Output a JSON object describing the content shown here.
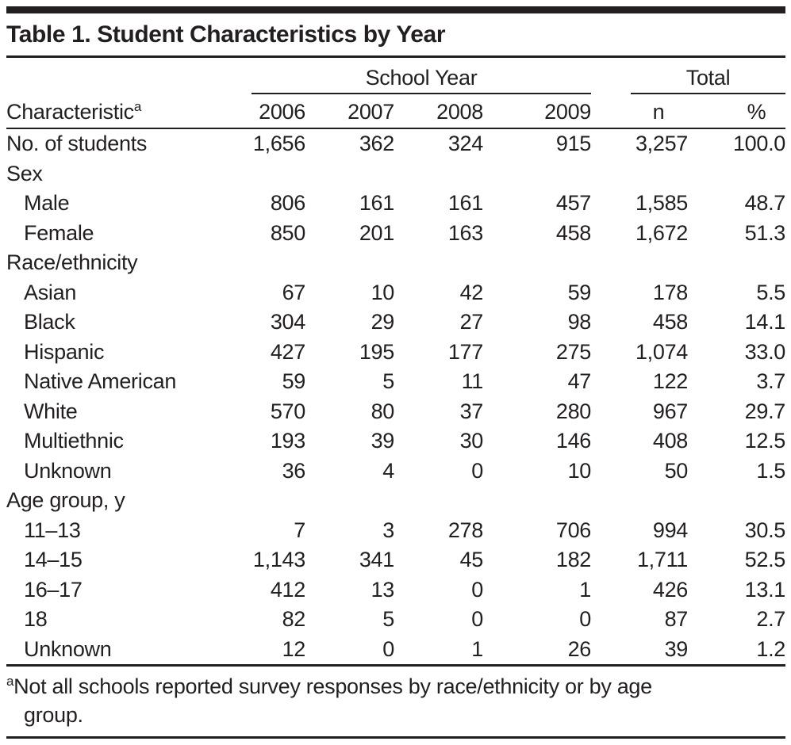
{
  "title": "Table 1. Student Characteristics by Year",
  "table": {
    "group_headers": {
      "school_year": "School Year",
      "total": "Total"
    },
    "characteristic_header": "Characteristic",
    "characteristic_footnote_marker": "a",
    "year_headers": [
      "2006",
      "2007",
      "2008",
      "2009"
    ],
    "total_headers": {
      "n": "n",
      "pct": "%"
    },
    "rows": [
      {
        "label": "No. of students",
        "section": false,
        "indent": false,
        "values": [
          "1,656",
          "362",
          "324",
          "915",
          "3,257",
          "100.0"
        ]
      },
      {
        "label": "Sex",
        "section": true,
        "indent": false,
        "values": []
      },
      {
        "label": "Male",
        "section": false,
        "indent": true,
        "values": [
          "806",
          "161",
          "161",
          "457",
          "1,585",
          "48.7"
        ]
      },
      {
        "label": "Female",
        "section": false,
        "indent": true,
        "values": [
          "850",
          "201",
          "163",
          "458",
          "1,672",
          "51.3"
        ]
      },
      {
        "label": "Race/ethnicity",
        "section": true,
        "indent": false,
        "values": []
      },
      {
        "label": "Asian",
        "section": false,
        "indent": true,
        "values": [
          "67",
          "10",
          "42",
          "59",
          "178",
          "5.5"
        ]
      },
      {
        "label": "Black",
        "section": false,
        "indent": true,
        "values": [
          "304",
          "29",
          "27",
          "98",
          "458",
          "14.1"
        ]
      },
      {
        "label": "Hispanic",
        "section": false,
        "indent": true,
        "values": [
          "427",
          "195",
          "177",
          "275",
          "1,074",
          "33.0"
        ]
      },
      {
        "label": "Native American",
        "section": false,
        "indent": true,
        "values": [
          "59",
          "5",
          "11",
          "47",
          "122",
          "3.7"
        ]
      },
      {
        "label": "White",
        "section": false,
        "indent": true,
        "values": [
          "570",
          "80",
          "37",
          "280",
          "967",
          "29.7"
        ]
      },
      {
        "label": "Multiethnic",
        "section": false,
        "indent": true,
        "values": [
          "193",
          "39",
          "30",
          "146",
          "408",
          "12.5"
        ]
      },
      {
        "label": "Unknown",
        "section": false,
        "indent": true,
        "values": [
          "36",
          "4",
          "0",
          "10",
          "50",
          "1.5"
        ]
      },
      {
        "label": "Age group, y",
        "section": true,
        "indent": false,
        "values": []
      },
      {
        "label": "11–13",
        "section": false,
        "indent": true,
        "values": [
          "7",
          "3",
          "278",
          "706",
          "994",
          "30.5"
        ]
      },
      {
        "label": "14–15",
        "section": false,
        "indent": true,
        "values": [
          "1,143",
          "341",
          "45",
          "182",
          "1,711",
          "52.5"
        ]
      },
      {
        "label": "16–17",
        "section": false,
        "indent": true,
        "values": [
          "412",
          "13",
          "0",
          "1",
          "426",
          "13.1"
        ]
      },
      {
        "label": "18",
        "section": false,
        "indent": true,
        "values": [
          "82",
          "5",
          "0",
          "0",
          "87",
          "2.7"
        ]
      },
      {
        "label": "Unknown",
        "section": false,
        "indent": true,
        "values": [
          "12",
          "0",
          "1",
          "26",
          "39",
          "1.2"
        ]
      }
    ]
  },
  "footnote": {
    "marker": "a",
    "line1": "Not all schools reported survey responses by race/ethnicity or by age",
    "line2": "group."
  },
  "colors": {
    "text": "#231f20",
    "rule": "#231f20",
    "background": "#ffffff"
  }
}
